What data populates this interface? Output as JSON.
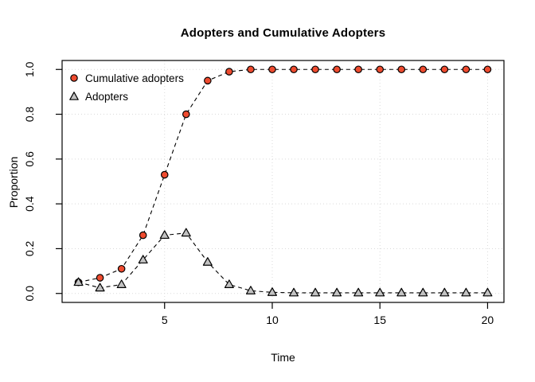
{
  "chart_data": {
    "type": "line",
    "title": "Adopters and Cumulative Adopters",
    "xlabel": "Time",
    "ylabel": "Proportion",
    "x": [
      1,
      2,
      3,
      4,
      5,
      6,
      7,
      8,
      9,
      10,
      11,
      12,
      13,
      14,
      15,
      16,
      17,
      18,
      19,
      20
    ],
    "series": [
      {
        "name": "Cumulative adopters",
        "marker": "circle",
        "marker_fill": "#EE4B2F",
        "values": [
          0.05,
          0.07,
          0.11,
          0.26,
          0.53,
          0.8,
          0.95,
          0.99,
          1.0,
          1.0,
          1.0,
          1.0,
          1.0,
          1.0,
          1.0,
          1.0,
          1.0,
          1.0,
          1.0,
          1.0
        ]
      },
      {
        "name": "Adopters",
        "marker": "triangle",
        "marker_fill": "#C2C2C2",
        "values": [
          0.05,
          0.025,
          0.04,
          0.15,
          0.26,
          0.27,
          0.14,
          0.04,
          0.012,
          0.005,
          0.003,
          0.003,
          0.003,
          0.003,
          0.003,
          0.003,
          0.003,
          0.003,
          0.003,
          0.003
        ]
      }
    ],
    "xticks": [
      5,
      10,
      15,
      20
    ],
    "xtick_labels": [
      "5",
      "10",
      "15",
      "20"
    ],
    "yticks": [
      0.0,
      0.2,
      0.4,
      0.6,
      0.8,
      1.0
    ],
    "ytick_labels": [
      "0.0",
      "0.2",
      "0.4",
      "0.6",
      "0.8",
      "1.0"
    ],
    "xlim": [
      0.24,
      20.76
    ],
    "ylim": [
      -0.04,
      1.04
    ],
    "grid": true,
    "grid_style": "dotted",
    "grid_color": "#DADADA",
    "line_style": "dashed",
    "line_color": "#000000",
    "axis_color": "#000000",
    "legend_position": "top-left"
  }
}
